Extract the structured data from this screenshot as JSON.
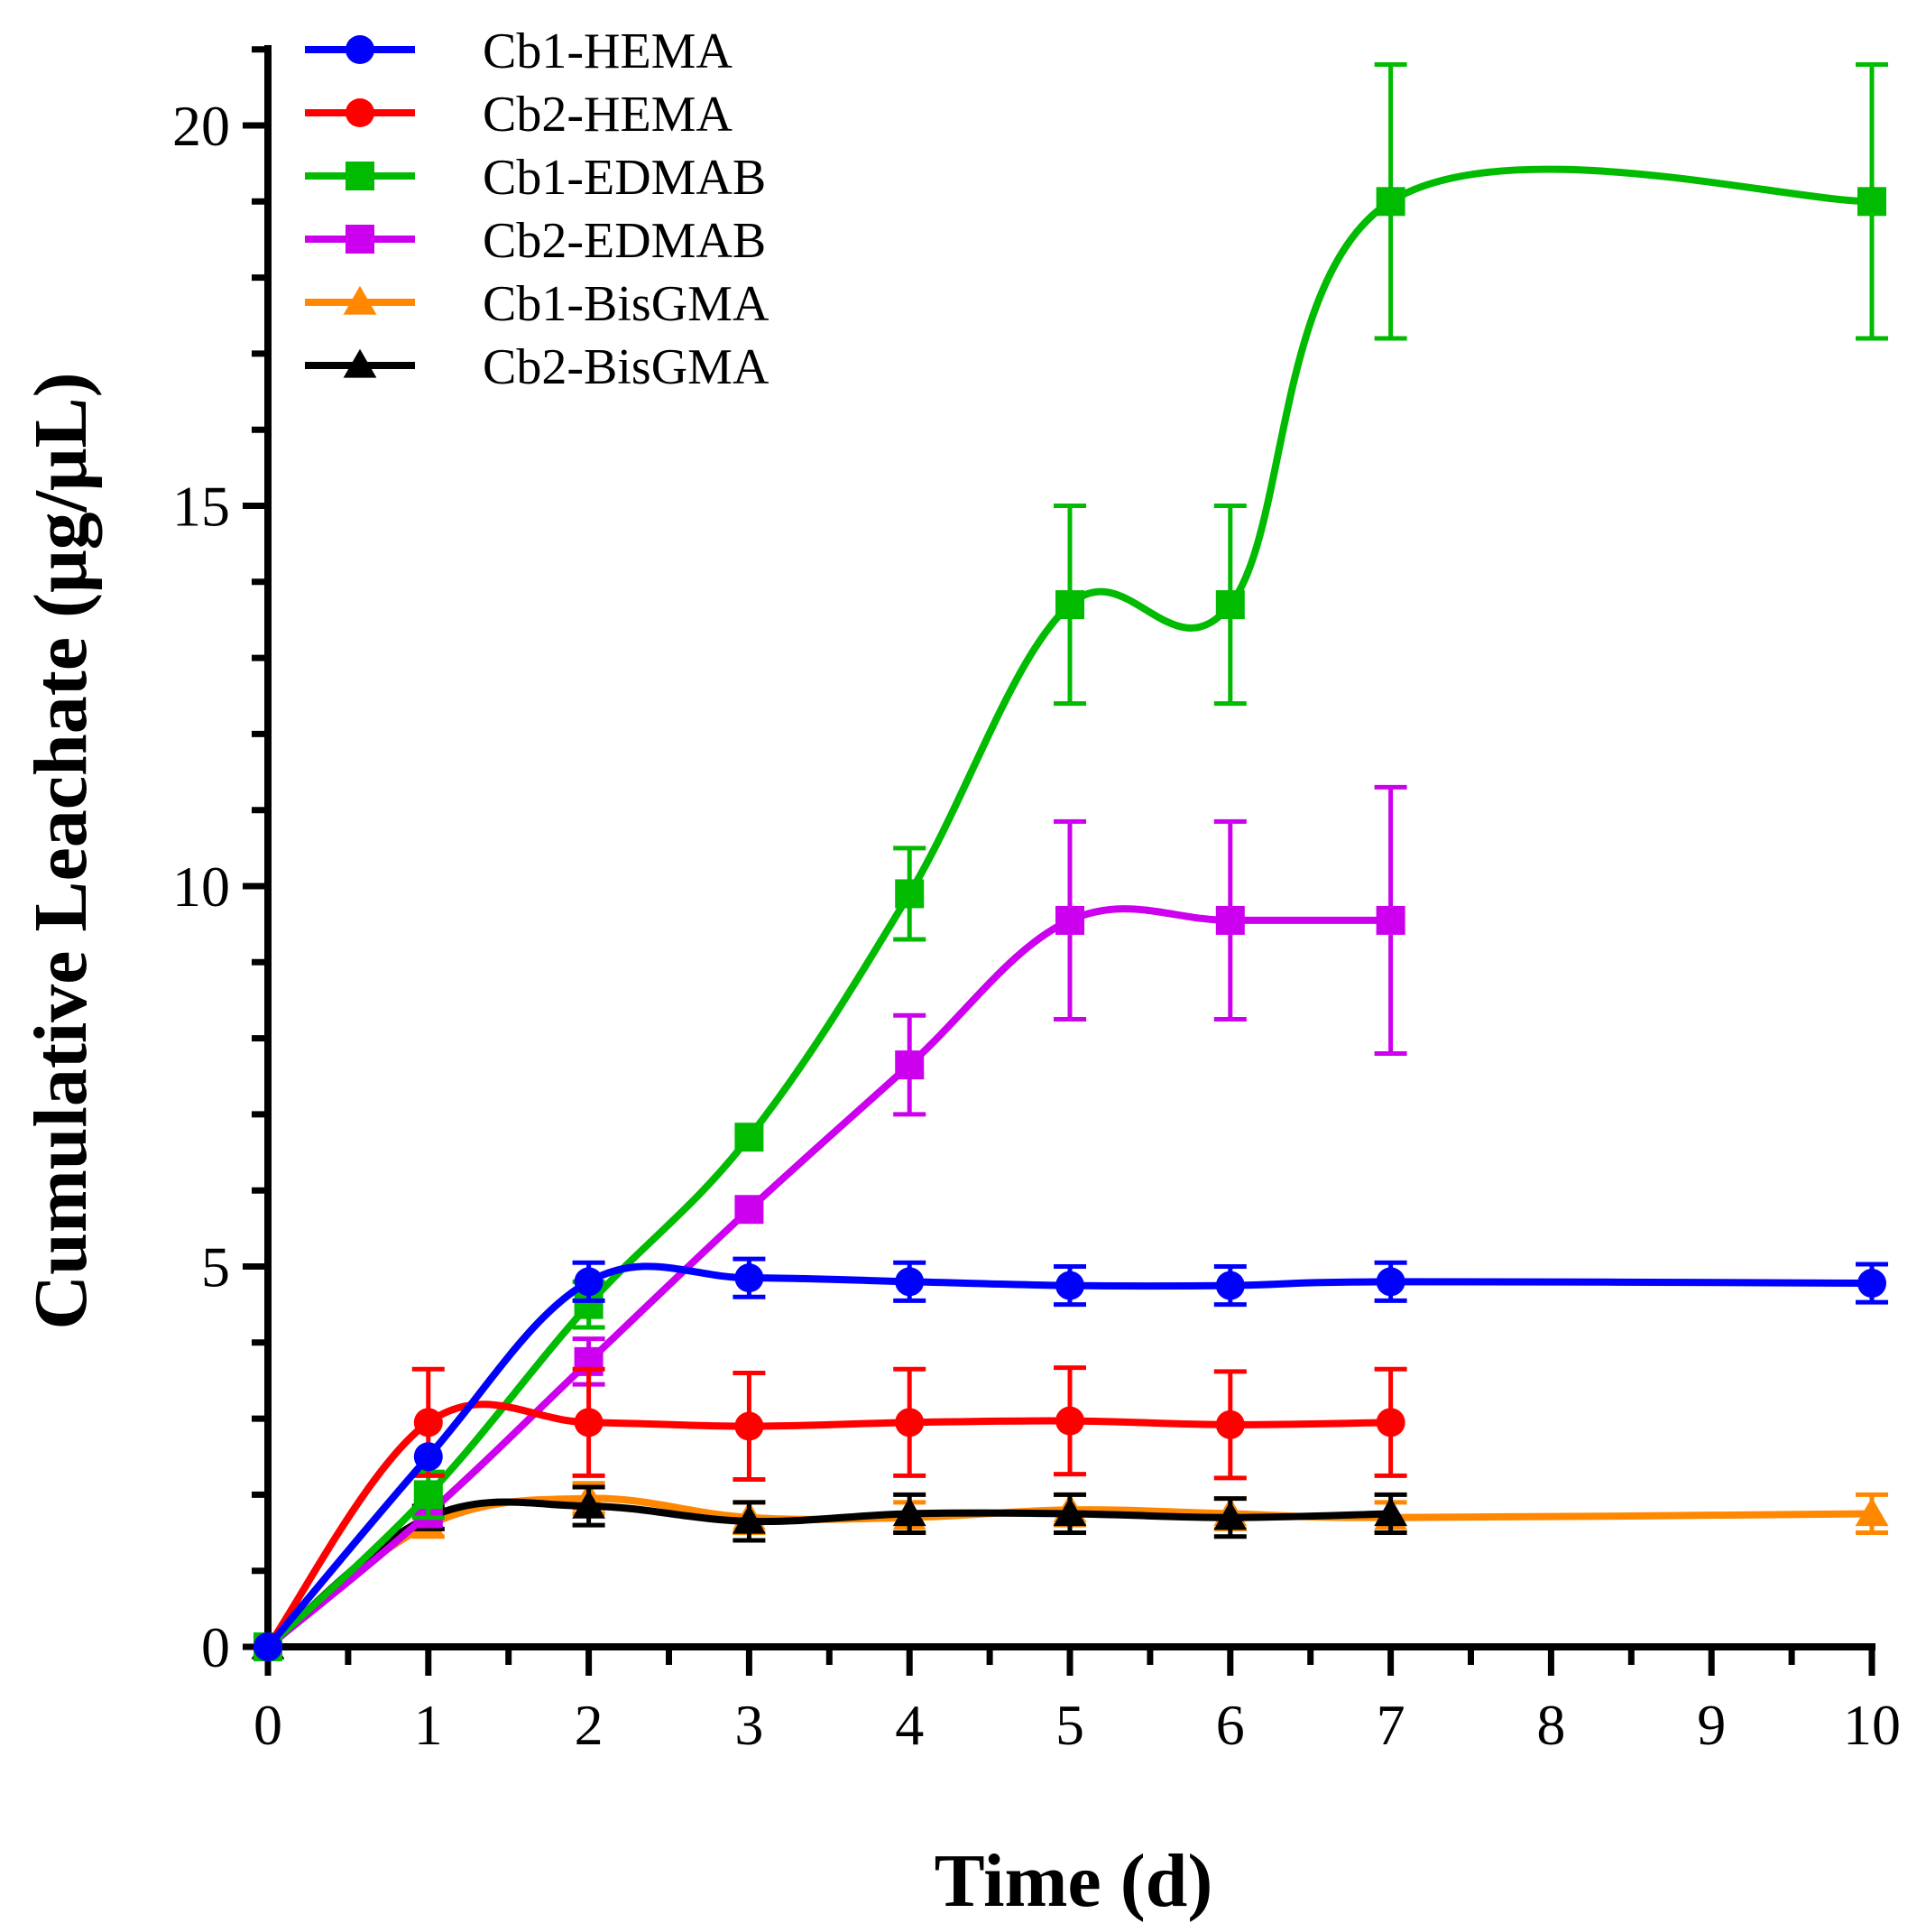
{
  "chart_data": {
    "type": "line",
    "title": "",
    "xlabel": "Time (d)",
    "ylabel": "Cumulative Leachate (μg/μL)",
    "xlim": [
      0,
      10
    ],
    "ylim": [
      0,
      21
    ],
    "x_ticks": [
      0,
      1,
      2,
      3,
      4,
      5,
      6,
      7,
      8,
      9,
      10
    ],
    "x_tick_labels": [
      "0",
      "1",
      "2",
      "3",
      "4",
      "5",
      "6",
      "7",
      "8",
      "9",
      "10"
    ],
    "y_ticks": [
      0,
      5,
      10,
      15,
      20
    ],
    "y_tick_labels": [
      "0",
      "5",
      "10",
      "15",
      "20"
    ],
    "grid": false,
    "legend_position": "top-left",
    "series": [
      {
        "name": "Cb1-HEMA",
        "color": "#0000ff",
        "marker": "circle",
        "x": [
          0,
          1,
          2,
          3,
          4,
          5,
          6,
          7,
          10
        ],
        "y": [
          0,
          2.5,
          4.8,
          4.85,
          4.8,
          4.75,
          4.75,
          4.8,
          4.78
        ],
        "error": [
          0,
          0,
          0.25,
          0.25,
          0.25,
          0.25,
          0.25,
          0.25,
          0.25
        ]
      },
      {
        "name": "Cb2-HEMA",
        "color": "#ff0000",
        "marker": "circle",
        "x": [
          0,
          1,
          2,
          3,
          4,
          5,
          6,
          7
        ],
        "y": [
          0,
          2.95,
          2.95,
          2.9,
          2.95,
          2.97,
          2.92,
          2.95
        ],
        "error": [
          0,
          0.7,
          0.7,
          0.7,
          0.7,
          0.7,
          0.7,
          0.7
        ]
      },
      {
        "name": "Cb1-EDMAB",
        "color": "#00bb00",
        "marker": "square",
        "x": [
          0,
          1,
          2,
          3,
          4,
          5,
          6,
          7,
          10
        ],
        "y": [
          0,
          2.0,
          4.5,
          6.7,
          9.9,
          13.7,
          13.7,
          19.0,
          19.0
        ],
        "error": [
          0,
          0.3,
          0.3,
          0,
          0.6,
          1.3,
          1.3,
          1.8,
          1.8
        ]
      },
      {
        "name": "Cb2-EDMAB",
        "color": "#cc00ee",
        "marker": "square",
        "x": [
          0,
          1,
          2,
          3,
          4,
          5,
          6,
          7
        ],
        "y": [
          0,
          1.75,
          3.75,
          5.75,
          7.65,
          9.55,
          9.55,
          9.55
        ],
        "error": [
          0,
          0,
          0.3,
          0,
          0.65,
          1.3,
          1.3,
          1.75
        ]
      },
      {
        "name": "Cb1-BisGMA",
        "color": "#ff8800",
        "marker": "triangle",
        "x": [
          0,
          1,
          2,
          3,
          4,
          5,
          6,
          7,
          10
        ],
        "y": [
          0,
          1.6,
          1.95,
          1.7,
          1.7,
          1.8,
          1.75,
          1.7,
          1.75
        ],
        "error": [
          0,
          0.15,
          0.2,
          0.2,
          0.2,
          0.2,
          0.2,
          0.2,
          0.25
        ]
      },
      {
        "name": "Cb2-BisGMA",
        "color": "#000000",
        "marker": "triangle",
        "x": [
          0,
          1,
          2,
          3,
          4,
          5,
          6,
          7
        ],
        "y": [
          0,
          1.7,
          1.85,
          1.65,
          1.75,
          1.75,
          1.7,
          1.75
        ],
        "error": [
          0,
          0.15,
          0.25,
          0.25,
          0.25,
          0.25,
          0.25,
          0.25
        ]
      }
    ]
  }
}
